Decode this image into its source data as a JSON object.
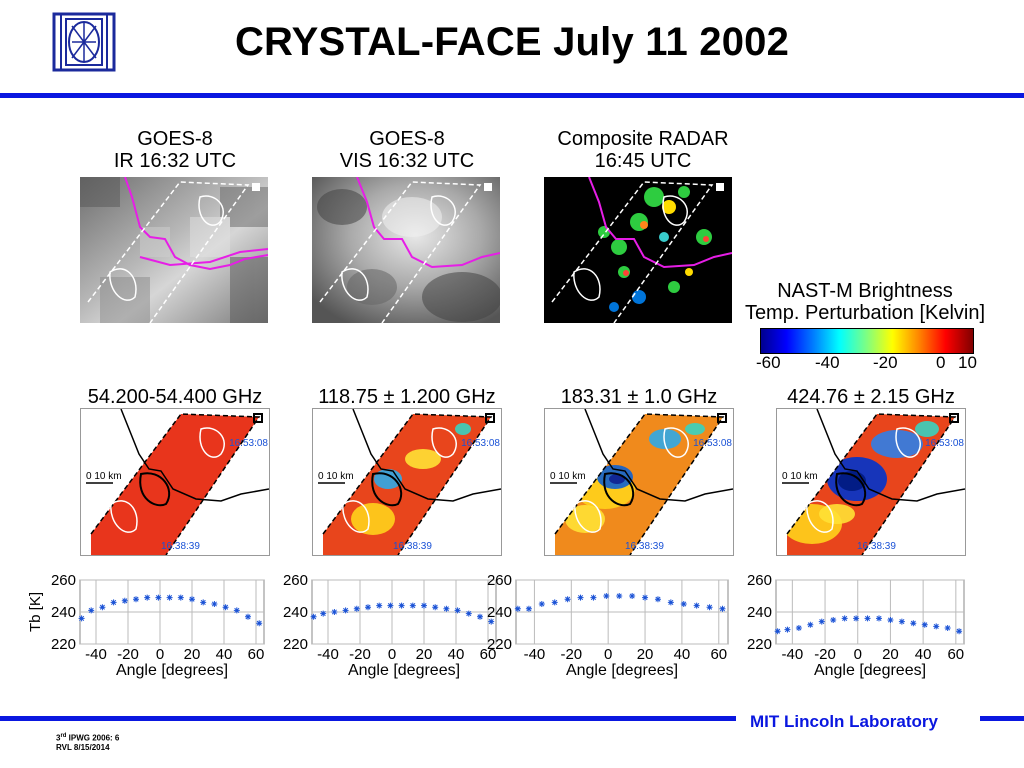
{
  "title": "CRYSTAL-FACE July 11 2002",
  "top_images": [
    {
      "title_line1": "GOES-8",
      "title_line2": "IR 16:32 UTC"
    },
    {
      "title_line1": "GOES-8",
      "title_line2": "VIS 16:32 UTC"
    },
    {
      "title_line1": "Composite RADAR",
      "title_line2": "16:45 UTC"
    }
  ],
  "colorbar": {
    "title_line1": "NAST-M Brightness",
    "title_line2": "Temp. Perturbation [Kelvin]",
    "ticks": [
      "-60",
      "-40",
      "-20",
      "0",
      "10"
    ]
  },
  "channels": [
    {
      "label": "54.200-54.400 GHz",
      "scale": "0 10 km",
      "time_start": "16:38:39",
      "time_end": "16:53:08"
    },
    {
      "label": "118.75 ± 1.200 GHz",
      "scale": "0 10 km",
      "time_start": "16:38:39",
      "time_end": "16:53:08"
    },
    {
      "label": "183.31 ± 1.0 GHz",
      "scale": "0 10 km",
      "time_start": "16:38:39",
      "time_end": "16:53:08"
    },
    {
      "label": "424.76 ± 2.15 GHz",
      "scale": "0 10 km",
      "time_start": "16:38:39",
      "time_end": "16:53:08"
    }
  ],
  "chart_data": [
    {
      "type": "scatter",
      "ylabel": "T_b [K]",
      "xlabel": "Angle [degrees]",
      "xlim": [
        -50,
        65
      ],
      "ylim": [
        220,
        260
      ],
      "xticks": [
        "-40",
        "-20",
        "0",
        "20",
        "40",
        "60"
      ],
      "yticks": [
        "260",
        "240",
        "220"
      ],
      "x": [
        -49,
        -43,
        -36,
        -29,
        -22,
        -15,
        -8,
        -1,
        6,
        13,
        20,
        27,
        34,
        41,
        48,
        55,
        62
      ],
      "y": [
        236,
        241,
        243,
        246,
        247,
        248,
        249,
        249,
        249,
        249,
        248,
        246,
        245,
        243,
        241,
        237,
        233
      ]
    },
    {
      "type": "scatter",
      "ylabel": "",
      "xlabel": "Angle [degrees]",
      "xlim": [
        -50,
        65
      ],
      "ylim": [
        220,
        260
      ],
      "xticks": [
        "-40",
        "-20",
        "0",
        "20",
        "40",
        "60"
      ],
      "yticks": [
        "260",
        "240",
        "220"
      ],
      "x": [
        -49,
        -43,
        -36,
        -29,
        -22,
        -15,
        -8,
        -1,
        6,
        13,
        20,
        27,
        34,
        41,
        48,
        55,
        62
      ],
      "y": [
        237,
        239,
        240,
        241,
        242,
        243,
        244,
        244,
        244,
        244,
        244,
        243,
        242,
        241,
        239,
        237,
        234
      ]
    },
    {
      "type": "scatter",
      "ylabel": "",
      "xlabel": "Angle [degrees]",
      "xlim": [
        -50,
        65
      ],
      "ylim": [
        220,
        260
      ],
      "xticks": [
        "-40",
        "-20",
        "0",
        "20",
        "40",
        "60"
      ],
      "yticks": [
        "260",
        "240",
        "220"
      ],
      "x": [
        -49,
        -43,
        -36,
        -29,
        -22,
        -15,
        -8,
        -1,
        6,
        13,
        20,
        27,
        34,
        41,
        48,
        55,
        62
      ],
      "y": [
        242,
        242,
        245,
        246,
        248,
        249,
        249,
        250,
        250,
        250,
        249,
        248,
        246,
        245,
        244,
        243,
        242
      ]
    },
    {
      "type": "scatter",
      "ylabel": "",
      "xlabel": "Angle [degrees]",
      "xlim": [
        -50,
        65
      ],
      "ylim": [
        220,
        260
      ],
      "xticks": [
        "-40",
        "-20",
        "0",
        "20",
        "40",
        "60"
      ],
      "yticks": [
        "260",
        "240",
        "220"
      ],
      "x": [
        -49,
        -43,
        -36,
        -29,
        -22,
        -15,
        -8,
        -1,
        6,
        13,
        20,
        27,
        34,
        41,
        48,
        55,
        62
      ],
      "y": [
        228,
        229,
        230,
        232,
        234,
        235,
        236,
        236,
        236,
        236,
        235,
        234,
        233,
        232,
        231,
        230,
        228
      ]
    }
  ],
  "footer": {
    "lab": "MIT Lincoln Laboratory",
    "line1_prefix": "3",
    "line1_sup": "rd",
    "line1_rest": " IPWG 2006: 6",
    "line2": "RVL 8/15/2014"
  },
  "colors": {
    "accent": "#0a17e0",
    "overlay": "#e61ee6",
    "times": "#1a52d6"
  }
}
